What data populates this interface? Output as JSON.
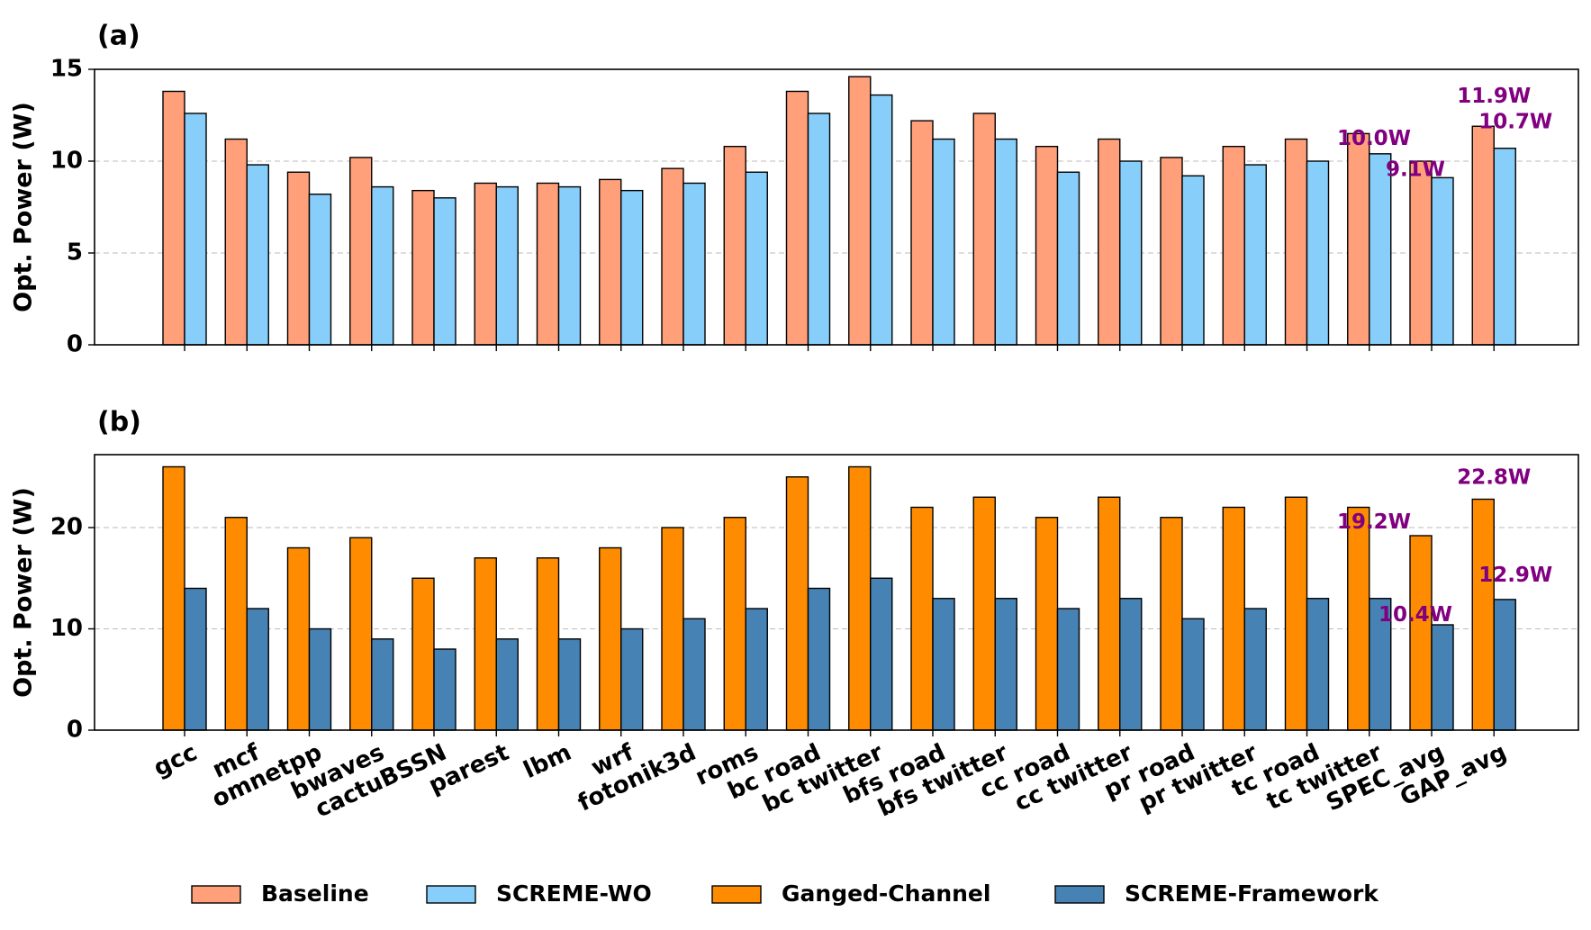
{
  "chart_data": [
    {
      "type": "bar",
      "panel_label": "(a)",
      "ylabel": "Opt. Power (W)",
      "ylim": [
        0,
        15
      ],
      "yticks": [
        0,
        5,
        10,
        15
      ],
      "grid": true,
      "categories": [
        "gcc",
        "mcf",
        "omnetpp",
        "bwaves",
        "cactuBSSN",
        "parest",
        "lbm",
        "wrf",
        "fotonik3d",
        "roms",
        "bc road",
        "bc twitter",
        "bfs road",
        "bfs twitter",
        "cc road",
        "cc twitter",
        "pr road",
        "pr twitter",
        "tc road",
        "tc twitter",
        "SPEC_avg",
        "GAP_avg"
      ],
      "series": [
        {
          "name": "Baseline",
          "color": "#ffa07a",
          "values": [
            13.8,
            11.2,
            9.4,
            10.2,
            8.4,
            8.8,
            8.8,
            9.0,
            9.6,
            10.8,
            13.8,
            14.6,
            12.2,
            12.6,
            10.8,
            11.2,
            10.2,
            10.8,
            11.2,
            11.5,
            10.0,
            11.9
          ]
        },
        {
          "name": "SCREME-WO",
          "color": "#87cefa",
          "values": [
            12.6,
            9.8,
            8.2,
            8.6,
            8.0,
            8.6,
            8.6,
            8.4,
            8.8,
            9.4,
            12.6,
            13.6,
            11.2,
            11.2,
            9.4,
            10.0,
            9.2,
            9.8,
            10.0,
            10.4,
            9.1,
            10.7
          ]
        }
      ],
      "annotations": [
        {
          "text": "10.0W",
          "category": "SPEC_avg",
          "series": 0
        },
        {
          "text": "9.1W",
          "category": "SPEC_avg",
          "series": 1
        },
        {
          "text": "11.9W",
          "category": "GAP_avg",
          "series": 0
        },
        {
          "text": "10.7W",
          "category": "GAP_avg",
          "series": 1
        }
      ],
      "annotation_color": "#800080"
    },
    {
      "type": "bar",
      "panel_label": "(b)",
      "ylabel": "Opt. Power (W)",
      "ylim": [
        0,
        27.2
      ],
      "yticks": [
        0,
        10,
        20
      ],
      "grid": true,
      "categories": [
        "gcc",
        "mcf",
        "omnetpp",
        "bwaves",
        "cactuBSSN",
        "parest",
        "lbm",
        "wrf",
        "fotonik3d",
        "roms",
        "bc road",
        "bc twitter",
        "bfs road",
        "bfs twitter",
        "cc road",
        "cc twitter",
        "pr road",
        "pr twitter",
        "tc road",
        "tc twitter",
        "SPEC_avg",
        "GAP_avg"
      ],
      "series": [
        {
          "name": "Ganged-Channel",
          "color": "#ff8c00",
          "values": [
            26,
            21,
            18,
            19,
            15,
            17,
            17,
            18,
            20,
            21,
            25,
            26,
            22,
            23,
            21,
            23,
            21,
            22,
            23,
            22,
            19.2,
            22.8
          ]
        },
        {
          "name": "SCREME-Framework",
          "color": "#4682b4",
          "values": [
            14,
            12,
            10,
            9,
            8,
            9,
            9,
            10,
            11,
            12,
            14,
            15,
            13,
            13,
            12,
            13,
            11,
            12,
            13,
            13,
            10.4,
            12.9
          ]
        }
      ],
      "annotations": [
        {
          "text": "19.2W",
          "category": "SPEC_avg",
          "series": 0
        },
        {
          "text": "10.4W",
          "category": "SPEC_avg",
          "series": 1
        },
        {
          "text": "22.8W",
          "category": "GAP_avg",
          "series": 0
        },
        {
          "text": "12.9W",
          "category": "GAP_avg",
          "series": 1
        }
      ],
      "annotation_color": "#800080"
    }
  ],
  "legend": {
    "placement": "bottom-center",
    "items": [
      {
        "label": "Baseline",
        "color": "#ffa07a"
      },
      {
        "label": "SCREME-WO",
        "color": "#87cefa"
      },
      {
        "label": "Ganged-Channel",
        "color": "#ff8c00"
      },
      {
        "label": "SCREME-Framework",
        "color": "#4682b4"
      }
    ]
  }
}
